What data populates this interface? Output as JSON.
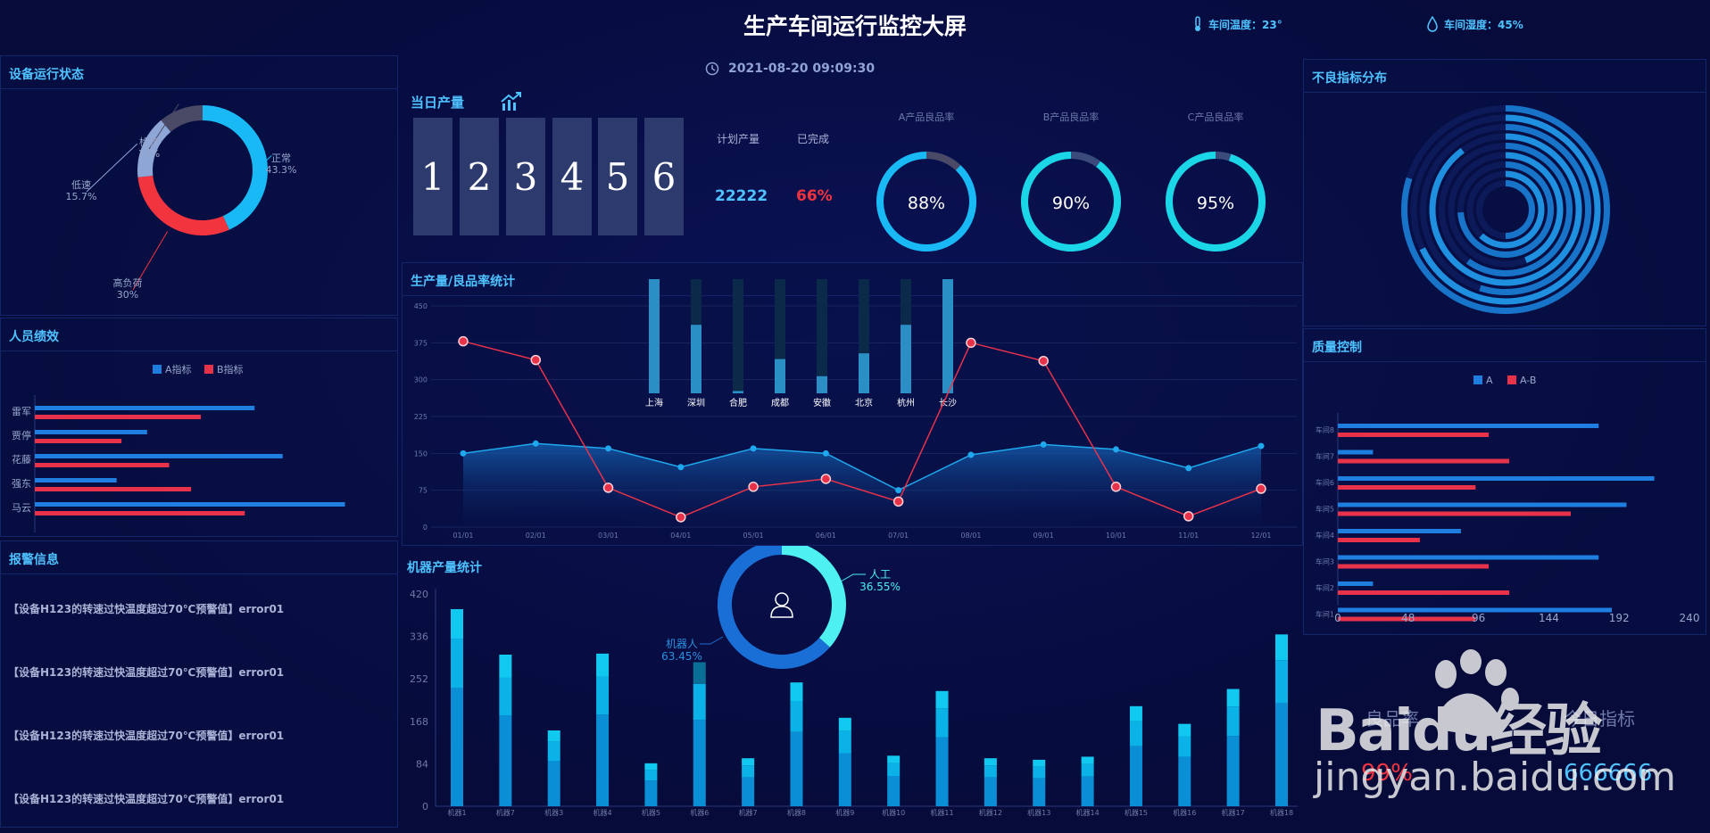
{
  "header": {
    "title": "生产车间运行监控大屏",
    "temperature_label": "车间温度：23°",
    "humidity_label": "车间湿度：45%",
    "datetime": "2021-08-20 09:09:30"
  },
  "device_status": {
    "title": "设备运行状态",
    "segments": [
      {
        "name": "正常",
        "percent": "43.3%",
        "value": 43.3,
        "color": "#19b9f5"
      },
      {
        "name": "高负荷",
        "percent": "30%",
        "value": 30,
        "color": "#f2343f"
      },
      {
        "name": "低速",
        "percent": "15.7%",
        "value": 15.7,
        "color": "#8ea6d6"
      },
      {
        "name": "检修",
        "percent": "11%",
        "value": 11,
        "color": "#4a4a66"
      }
    ]
  },
  "staff": {
    "title": "人员绩效",
    "legend": [
      "A指标",
      "B指标"
    ],
    "colors": [
      "#1e7fe0",
      "#e8324a"
    ],
    "names": [
      "雷军",
      "贾停",
      "花藤",
      "强东",
      "马云"
    ],
    "a_values": [
      180,
      92,
      203,
      67,
      254
    ],
    "b_values": [
      136,
      71,
      110,
      128,
      172
    ],
    "xticks": [
      "0",
      "48",
      "96",
      "144",
      "192",
      "240",
      "288"
    ],
    "xmax": 288
  },
  "alarms": {
    "title": "报警信息",
    "items": [
      "【设备H123的转速过快温度超过70℃预警值】error01",
      "【设备H123的转速过快温度超过70℃预警值】error01",
      "【设备H123的转速过快温度超过70℃预警值】error01",
      "【设备H123的转速过快温度超过70℃预警值】error01"
    ]
  },
  "daily_output": {
    "title": "当日产量",
    "digits": [
      "1",
      "2",
      "3",
      "4",
      "5",
      "6"
    ],
    "plan_label": "计划产量",
    "done_label": "已完成",
    "plan_value": "22222",
    "done_value": "66%",
    "rates": [
      {
        "label": "A产品良品率",
        "value": "88%",
        "fraction": 0.88
      },
      {
        "label": "B产品良品率",
        "value": "90%",
        "fraction": 0.9
      },
      {
        "label": "C产品良品率",
        "value": "95%",
        "fraction": 0.95
      }
    ]
  },
  "production_chart": {
    "title": "生产量/良品率统计",
    "chart_data": {
      "type": "line",
      "x": [
        "01/01",
        "02/01",
        "03/01",
        "04/01",
        "05/01",
        "06/01",
        "07/01",
        "08/01",
        "09/01",
        "10/01",
        "11/01",
        "12/01"
      ],
      "ylim": [
        0,
        450
      ],
      "yticks": [
        "0",
        "75",
        "150",
        "225",
        "300",
        "375",
        "450"
      ],
      "series": [
        {
          "values": [
            150,
            170,
            160,
            122,
            160,
            150,
            75,
            147,
            168,
            158,
            120,
            165
          ],
          "color": "#1fa8ee"
        },
        {
          "values": [
            378,
            340,
            80,
            20,
            82,
            98,
            52,
            375,
            338,
            82,
            22,
            78
          ],
          "color": "#e8324a"
        }
      ],
      "city_bars": {
        "categories": [
          "上海",
          "深圳",
          "合肥",
          "成都",
          "安徽",
          "北京",
          "杭州",
          "长沙"
        ],
        "values": [
          100,
          60,
          2,
          30,
          15,
          35,
          60,
          100
        ]
      }
    }
  },
  "machine_chart": {
    "title": "机器产量统计",
    "donut": [
      {
        "name": "人工",
        "percent": "36.55%",
        "value": 36.55,
        "color": "#4ef0f0"
      },
      {
        "name": "机器人",
        "percent": "63.45%",
        "value": 63.45,
        "color": "#1a6fd6"
      }
    ],
    "chart_data": {
      "type": "bar",
      "categories": [
        "机器1",
        "机器7",
        "机器3",
        "机器4",
        "机器5",
        "机器6",
        "机器7",
        "机器8",
        "机器9",
        "机器10",
        "机器11",
        "机器12",
        "机器13",
        "机器14",
        "机器15",
        "机器16",
        "机器17",
        "机器18"
      ],
      "totals": [
        390,
        300,
        150,
        302,
        85,
        285,
        95,
        245,
        175,
        100,
        228,
        95,
        92,
        98,
        198,
        163,
        232,
        340
      ],
      "ylim": [
        0,
        420
      ],
      "yticks": [
        "0",
        "84",
        "168",
        "252",
        "336",
        "420"
      ]
    }
  },
  "defects": {
    "title": "不良指标分布",
    "rings": [
      0.5,
      0.62,
      0.74,
      0.44,
      0.6,
      0.9,
      0.55,
      0.68,
      0.8
    ]
  },
  "quality": {
    "title": "质量控制",
    "legend": [
      "A",
      "A-B"
    ],
    "colors": [
      "#1e7fe0",
      "#e8324a"
    ],
    "rows": [
      "车间8",
      "车间7",
      "车间6",
      "车间5",
      "车间4",
      "车间3",
      "车间2",
      "车间1"
    ],
    "a_values": [
      178,
      24,
      216,
      197,
      84,
      178,
      24,
      187
    ],
    "b_values": [
      103,
      117,
      94,
      159,
      56,
      103,
      117,
      94
    ],
    "xticks": [
      "0",
      "48",
      "96",
      "144",
      "192",
      "240"
    ],
    "xmax": 240
  },
  "footer_stats": {
    "left_label": "良品率",
    "right_label": "今日指标",
    "left_value": "99%",
    "right_value": "666666"
  },
  "watermark": {
    "brand": "Baidu经验",
    "url": "jingyan.baidu.com"
  }
}
